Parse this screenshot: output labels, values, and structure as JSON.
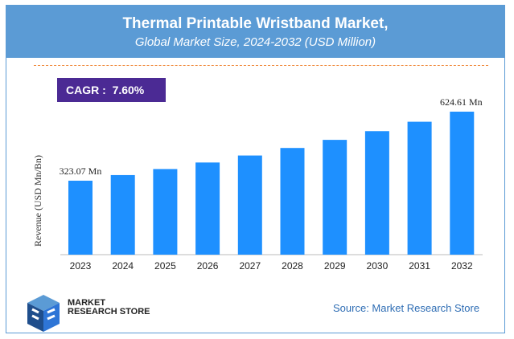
{
  "header": {
    "title": "Thermal Printable Wristband Market,",
    "subtitle": "Global Market Size, 2024-2032 (USD Million)"
  },
  "cagr": {
    "label": "CAGR :",
    "value": "7.60%"
  },
  "footer": {
    "logo_line1": "MARKET",
    "logo_line2": "RESEARCH STORE",
    "source": "Source: Market Research Store"
  },
  "colors": {
    "header": "#5b9bd5",
    "bar": "#1e90ff",
    "cagr_box": "#4b2a94",
    "dash": "#f08a3c"
  },
  "chart_data": {
    "type": "bar",
    "categories": [
      "2023",
      "2024",
      "2025",
      "2026",
      "2027",
      "2028",
      "2029",
      "2030",
      "2031",
      "2032"
    ],
    "values": [
      323.07,
      347.6,
      374.0,
      402.5,
      433.1,
      466.0,
      501.4,
      539.5,
      580.5,
      624.61
    ],
    "data_labels": {
      "2023": "323.07 Mn",
      "2032": "624.61 Mn"
    },
    "ylabel": "Revenue (USD Mn/Bn)",
    "xlabel": "",
    "ylim": [
      0,
      650
    ],
    "grid": false,
    "legend": "none"
  }
}
